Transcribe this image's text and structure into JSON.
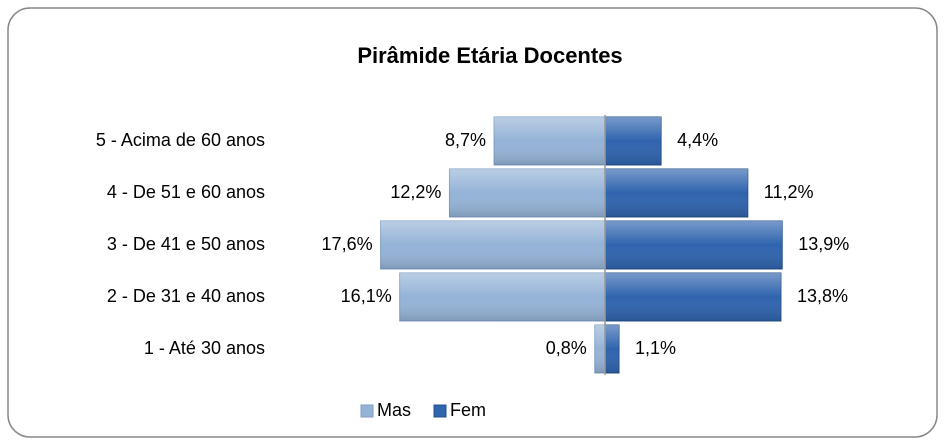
{
  "chart_data": {
    "type": "pyramid",
    "title": "Pirâmide Etária Docentes",
    "categories": [
      "5 - Acima de 60 anos",
      "4 - De 51 e 60 anos",
      "3 - De 41 e 50 anos",
      "2 - De 31 e 40 anos",
      "1 - Até 30 anos"
    ],
    "series": [
      {
        "name": "Mas",
        "color": "#95b3d7",
        "values": [
          8.7,
          12.2,
          17.6,
          16.1,
          0.8
        ],
        "value_labels": [
          "8,7%",
          "12,2%",
          "17,6%",
          "16,1%",
          "0,8%"
        ]
      },
      {
        "name": "Fem",
        "color": "#2f64ae",
        "values": [
          4.4,
          11.2,
          13.9,
          13.8,
          1.1
        ],
        "value_labels": [
          "4,4%",
          "11,2%",
          "13,9%",
          "13,8%",
          "1,1%"
        ]
      }
    ],
    "legend": "bottom"
  }
}
